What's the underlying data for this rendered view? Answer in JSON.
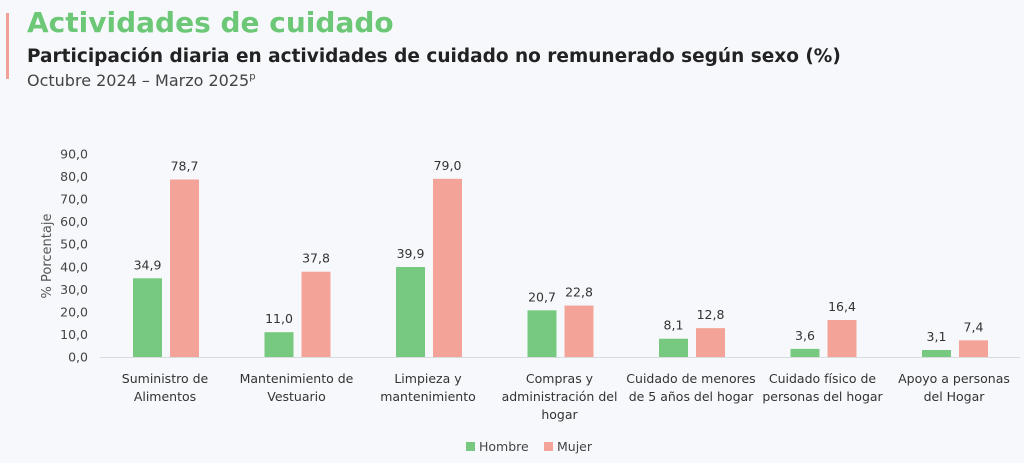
{
  "header": {
    "title": "Actividades de cuidado",
    "subtitle": "Participación diaria en actividades de cuidado no remunerado según sexo (%)",
    "period": "Octubre 2024 – Marzo 2025",
    "period_superscript": "p"
  },
  "chart_data": {
    "type": "bar",
    "title": "Participación diaria en actividades de cuidado no remunerado según sexo (%)",
    "xlabel": "",
    "ylabel": "% Porcentaje",
    "ylim": [
      0,
      90
    ],
    "yticks": [
      "0,0",
      "10,0",
      "20,0",
      "30,0",
      "40,0",
      "50,0",
      "60,0",
      "70,0",
      "80,0",
      "90,0"
    ],
    "grid": false,
    "legend_position": "bottom",
    "categories": [
      [
        "Suministro de",
        "Alimentos"
      ],
      [
        "Mantenimiento de",
        "Vestuario"
      ],
      [
        "Limpieza y",
        "mantenimiento"
      ],
      [
        "Compras y",
        "administración del",
        "hogar"
      ],
      [
        "Cuidado de menores",
        "de 5 años del hogar"
      ],
      [
        "Cuidado físico de",
        "personas del hogar"
      ],
      [
        "Apoyo a personas",
        "del Hogar"
      ]
    ],
    "series": [
      {
        "name": "Hombre",
        "color": "#77c97f",
        "values": [
          34.9,
          11.0,
          39.9,
          20.7,
          8.1,
          3.6,
          3.1
        ],
        "labels": [
          "34,9",
          "11,0",
          "39,9",
          "20,7",
          "8,1",
          "3,6",
          "3,1"
        ]
      },
      {
        "name": "Mujer",
        "color": "#f4a398",
        "values": [
          78.7,
          37.8,
          79.0,
          22.8,
          12.8,
          16.4,
          7.4
        ],
        "labels": [
          "78,7",
          "37,8",
          "79,0",
          "22,8",
          "12,8",
          "16,4",
          "7,4"
        ]
      }
    ]
  }
}
